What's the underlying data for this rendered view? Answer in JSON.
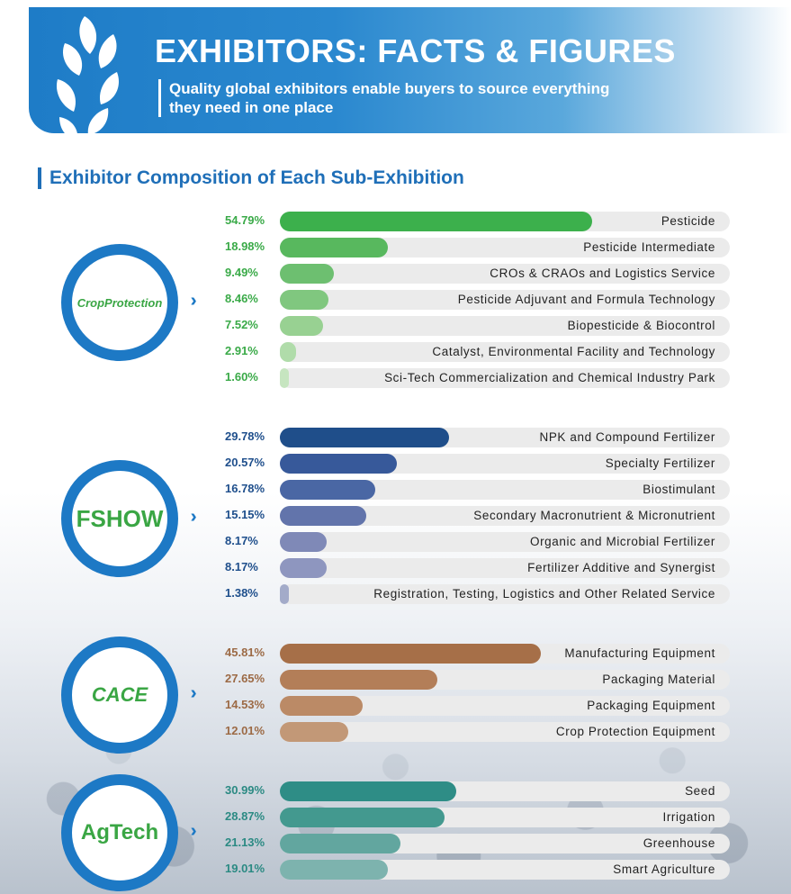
{
  "header": {
    "title": "EXHIBITORS: FACTS & FIGURES",
    "subtitle_line1": "Quality global exhibitors enable buyers to source everything",
    "subtitle_line2": "they need in one place"
  },
  "section_title": "Exhibitor Composition of Each Sub-Exhibition",
  "chart_data": {
    "type": "bar",
    "title": "Exhibitor Composition of Each Sub-Exhibition",
    "xlim": [
      0,
      79
    ],
    "groups": [
      {
        "name": "CropProtection",
        "badge_text": "CropProtection",
        "color": "#3aaa48",
        "categories": [
          "Pesticide",
          "Pesticide Intermediate",
          "CROs & CRAOs and Logistics Service",
          "Pesticide Adjuvant and Formula Technology",
          "Biopesticide & Biocontrol",
          "Catalyst, Environmental Facility and Technology",
          "Sci-Tech Commercialization and Chemical Industry Park"
        ],
        "values": [
          54.79,
          18.98,
          9.49,
          8.46,
          7.52,
          2.91,
          1.6
        ],
        "labels": [
          "54.79%",
          "18.98%",
          "9.49%",
          "8.46%",
          "7.52%",
          "2.91%",
          "1.60%"
        ],
        "colors": [
          "#3cb04c",
          "#58b85e",
          "#6dbf70",
          "#80c77f",
          "#98d192",
          "#b0dcaa",
          "#c6e5c0"
        ]
      },
      {
        "name": "FSHOW",
        "badge_text": "FSHOW",
        "color": "#1f4f8c",
        "categories": [
          "NPK and Compound Fertilizer",
          "Specialty Fertilizer",
          "Biostimulant",
          "Secondary Macronutrient & Micronutrient",
          "Organic and Microbial Fertilizer",
          "Fertilizer Additive and Synergist",
          "Registration, Testing, Logistics and Other Related Service"
        ],
        "values": [
          29.78,
          20.57,
          16.78,
          15.15,
          8.17,
          8.17,
          1.38
        ],
        "labels": [
          "29.78%",
          "20.57%",
          "16.78%",
          "15.15%",
          "8.17%",
          "8.17%",
          "1.38%"
        ],
        "colors": [
          "#1f4e8a",
          "#37599a",
          "#4a67a4",
          "#6274ab",
          "#7f89b7",
          "#8e96bf",
          "#a3abc9"
        ]
      },
      {
        "name": "CACE",
        "badge_text": "CACE",
        "color": "#9c6a45",
        "categories": [
          "Manufacturing Equipment",
          "Packaging Material",
          "Packaging Equipment",
          "Crop Protection Equipment"
        ],
        "values": [
          45.81,
          27.65,
          14.53,
          12.01
        ],
        "labels": [
          "45.81%",
          "27.65%",
          "14.53%",
          "12.01%"
        ],
        "colors": [
          "#a66f48",
          "#b37e58",
          "#bb8a66",
          "#c29877"
        ]
      },
      {
        "name": "AgTech",
        "badge_text": "AgTech",
        "color": "#2b8a83",
        "categories": [
          "Seed",
          "Irrigation",
          "Greenhouse",
          "Smart Agriculture"
        ],
        "values": [
          30.99,
          28.87,
          21.13,
          19.01
        ],
        "labels": [
          "30.99%",
          "28.87%",
          "21.13%",
          "19.01%"
        ],
        "colors": [
          "#2e8d86",
          "#43998f",
          "#62a69f",
          "#7db3ae"
        ]
      }
    ]
  },
  "colors": {
    "brand_blue": "#1d79c5",
    "badge_text_green": "#3aa644"
  },
  "icons": {
    "header_logo": "wheat-leaf-icon",
    "arrow": "double-chevron-right-icon"
  }
}
